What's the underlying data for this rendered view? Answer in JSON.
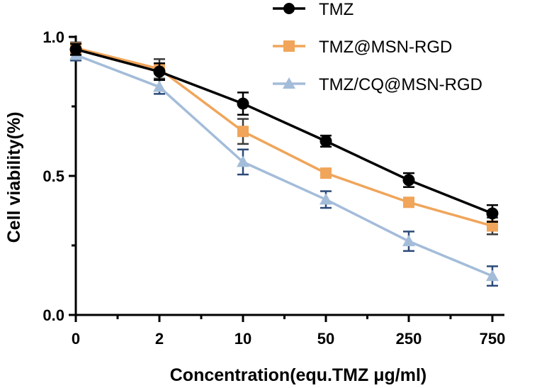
{
  "chart_data": {
    "type": "line",
    "title": "",
    "xlabel": "Concentration(equ.TMZ μg/ml)",
    "ylabel": "Cell viability(%)",
    "categories": [
      "0",
      "2",
      "10",
      "50",
      "250",
      "750"
    ],
    "ylim": [
      0,
      1.0
    ],
    "yticks": [
      0.0,
      0.5,
      1.0
    ],
    "ytick_labels": [
      "0.0",
      "0.5",
      "1.0"
    ],
    "grid": false,
    "legend_position": "top-right",
    "series": [
      {
        "name": "TMZ",
        "marker": "circle",
        "color": "#000000",
        "error_color": "#000000",
        "values": [
          0.955,
          0.875,
          0.76,
          0.625,
          0.485,
          0.365
        ],
        "errors": [
          0.02,
          0.03,
          0.04,
          0.02,
          0.025,
          0.03
        ]
      },
      {
        "name": "TMZ@MSN-RGD",
        "marker": "square",
        "color": "#f0a55a",
        "error_color": "#3b3b3b",
        "values": [
          0.96,
          0.885,
          0.66,
          0.51,
          0.405,
          0.32
        ],
        "errors": [
          0.02,
          0.035,
          0.045,
          0.01,
          0.01,
          0.03
        ]
      },
      {
        "name": "TMZ/CQ@MSN-RGD",
        "marker": "triangle",
        "color": "#a3bcd9",
        "error_color": "#2b4a78",
        "values": [
          0.935,
          0.82,
          0.55,
          0.415,
          0.265,
          0.14
        ],
        "errors": [
          0.02,
          0.025,
          0.045,
          0.03,
          0.035,
          0.035
        ]
      }
    ]
  }
}
